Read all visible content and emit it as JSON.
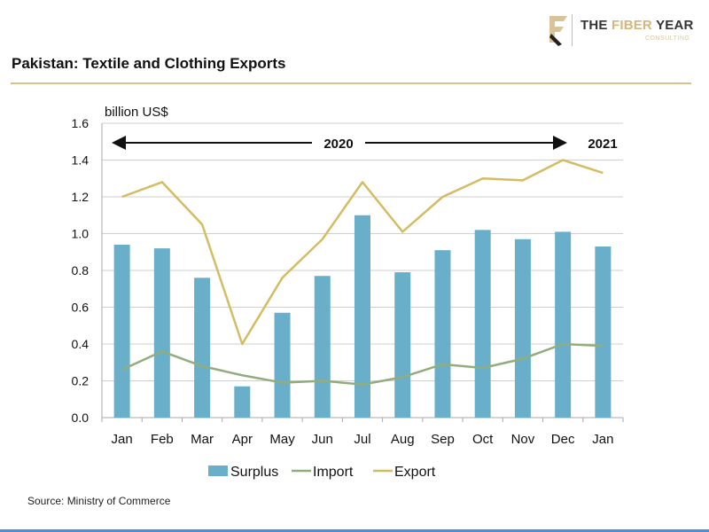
{
  "logo": {
    "brand": "THE FIBER YEAR",
    "sub": "CONSULTING",
    "brand_parts": [
      "THE ",
      "FIBER",
      " YEAR"
    ]
  },
  "title": "Pakistan: Textile and Clothing Exports",
  "source": "Source: Ministry of Commerce",
  "colors": {
    "surplus": "#6aafc9",
    "import": "#92ad7d",
    "export": "#d4bc63",
    "rule": "#d6c58a",
    "grid": "#cfcfcf"
  },
  "chart_data": {
    "type": "bar",
    "title": "Pakistan: Textile and Clothing Exports",
    "ylabel": "billion US$",
    "ylim": [
      0,
      1.6
    ],
    "yticks": [
      "0.0",
      "0.2",
      "0.4",
      "0.6",
      "0.8",
      "1.0",
      "1.2",
      "1.4",
      "1.6"
    ],
    "grid": true,
    "legend_placement": "bottom",
    "categories": [
      "Jan",
      "Feb",
      "Mar",
      "Apr",
      "May",
      "Jun",
      "Jul",
      "Aug",
      "Sep",
      "Oct",
      "Nov",
      "Dec",
      "Jan"
    ],
    "annotations": {
      "year1": "2020",
      "year2": "2021"
    },
    "series": [
      {
        "name": "Surplus",
        "type": "bar",
        "values": [
          0.94,
          0.92,
          0.76,
          0.17,
          0.57,
          0.77,
          1.1,
          0.79,
          0.91,
          1.02,
          0.97,
          1.01,
          0.93
        ]
      },
      {
        "name": "Import",
        "type": "line",
        "values": [
          0.26,
          0.36,
          0.28,
          0.23,
          0.19,
          0.2,
          0.18,
          0.22,
          0.29,
          0.27,
          0.32,
          0.4,
          0.39
        ]
      },
      {
        "name": "Export",
        "type": "line",
        "values": [
          1.2,
          1.28,
          1.05,
          0.4,
          0.76,
          0.97,
          1.28,
          1.01,
          1.2,
          1.3,
          1.29,
          1.4,
          1.33
        ]
      }
    ]
  }
}
